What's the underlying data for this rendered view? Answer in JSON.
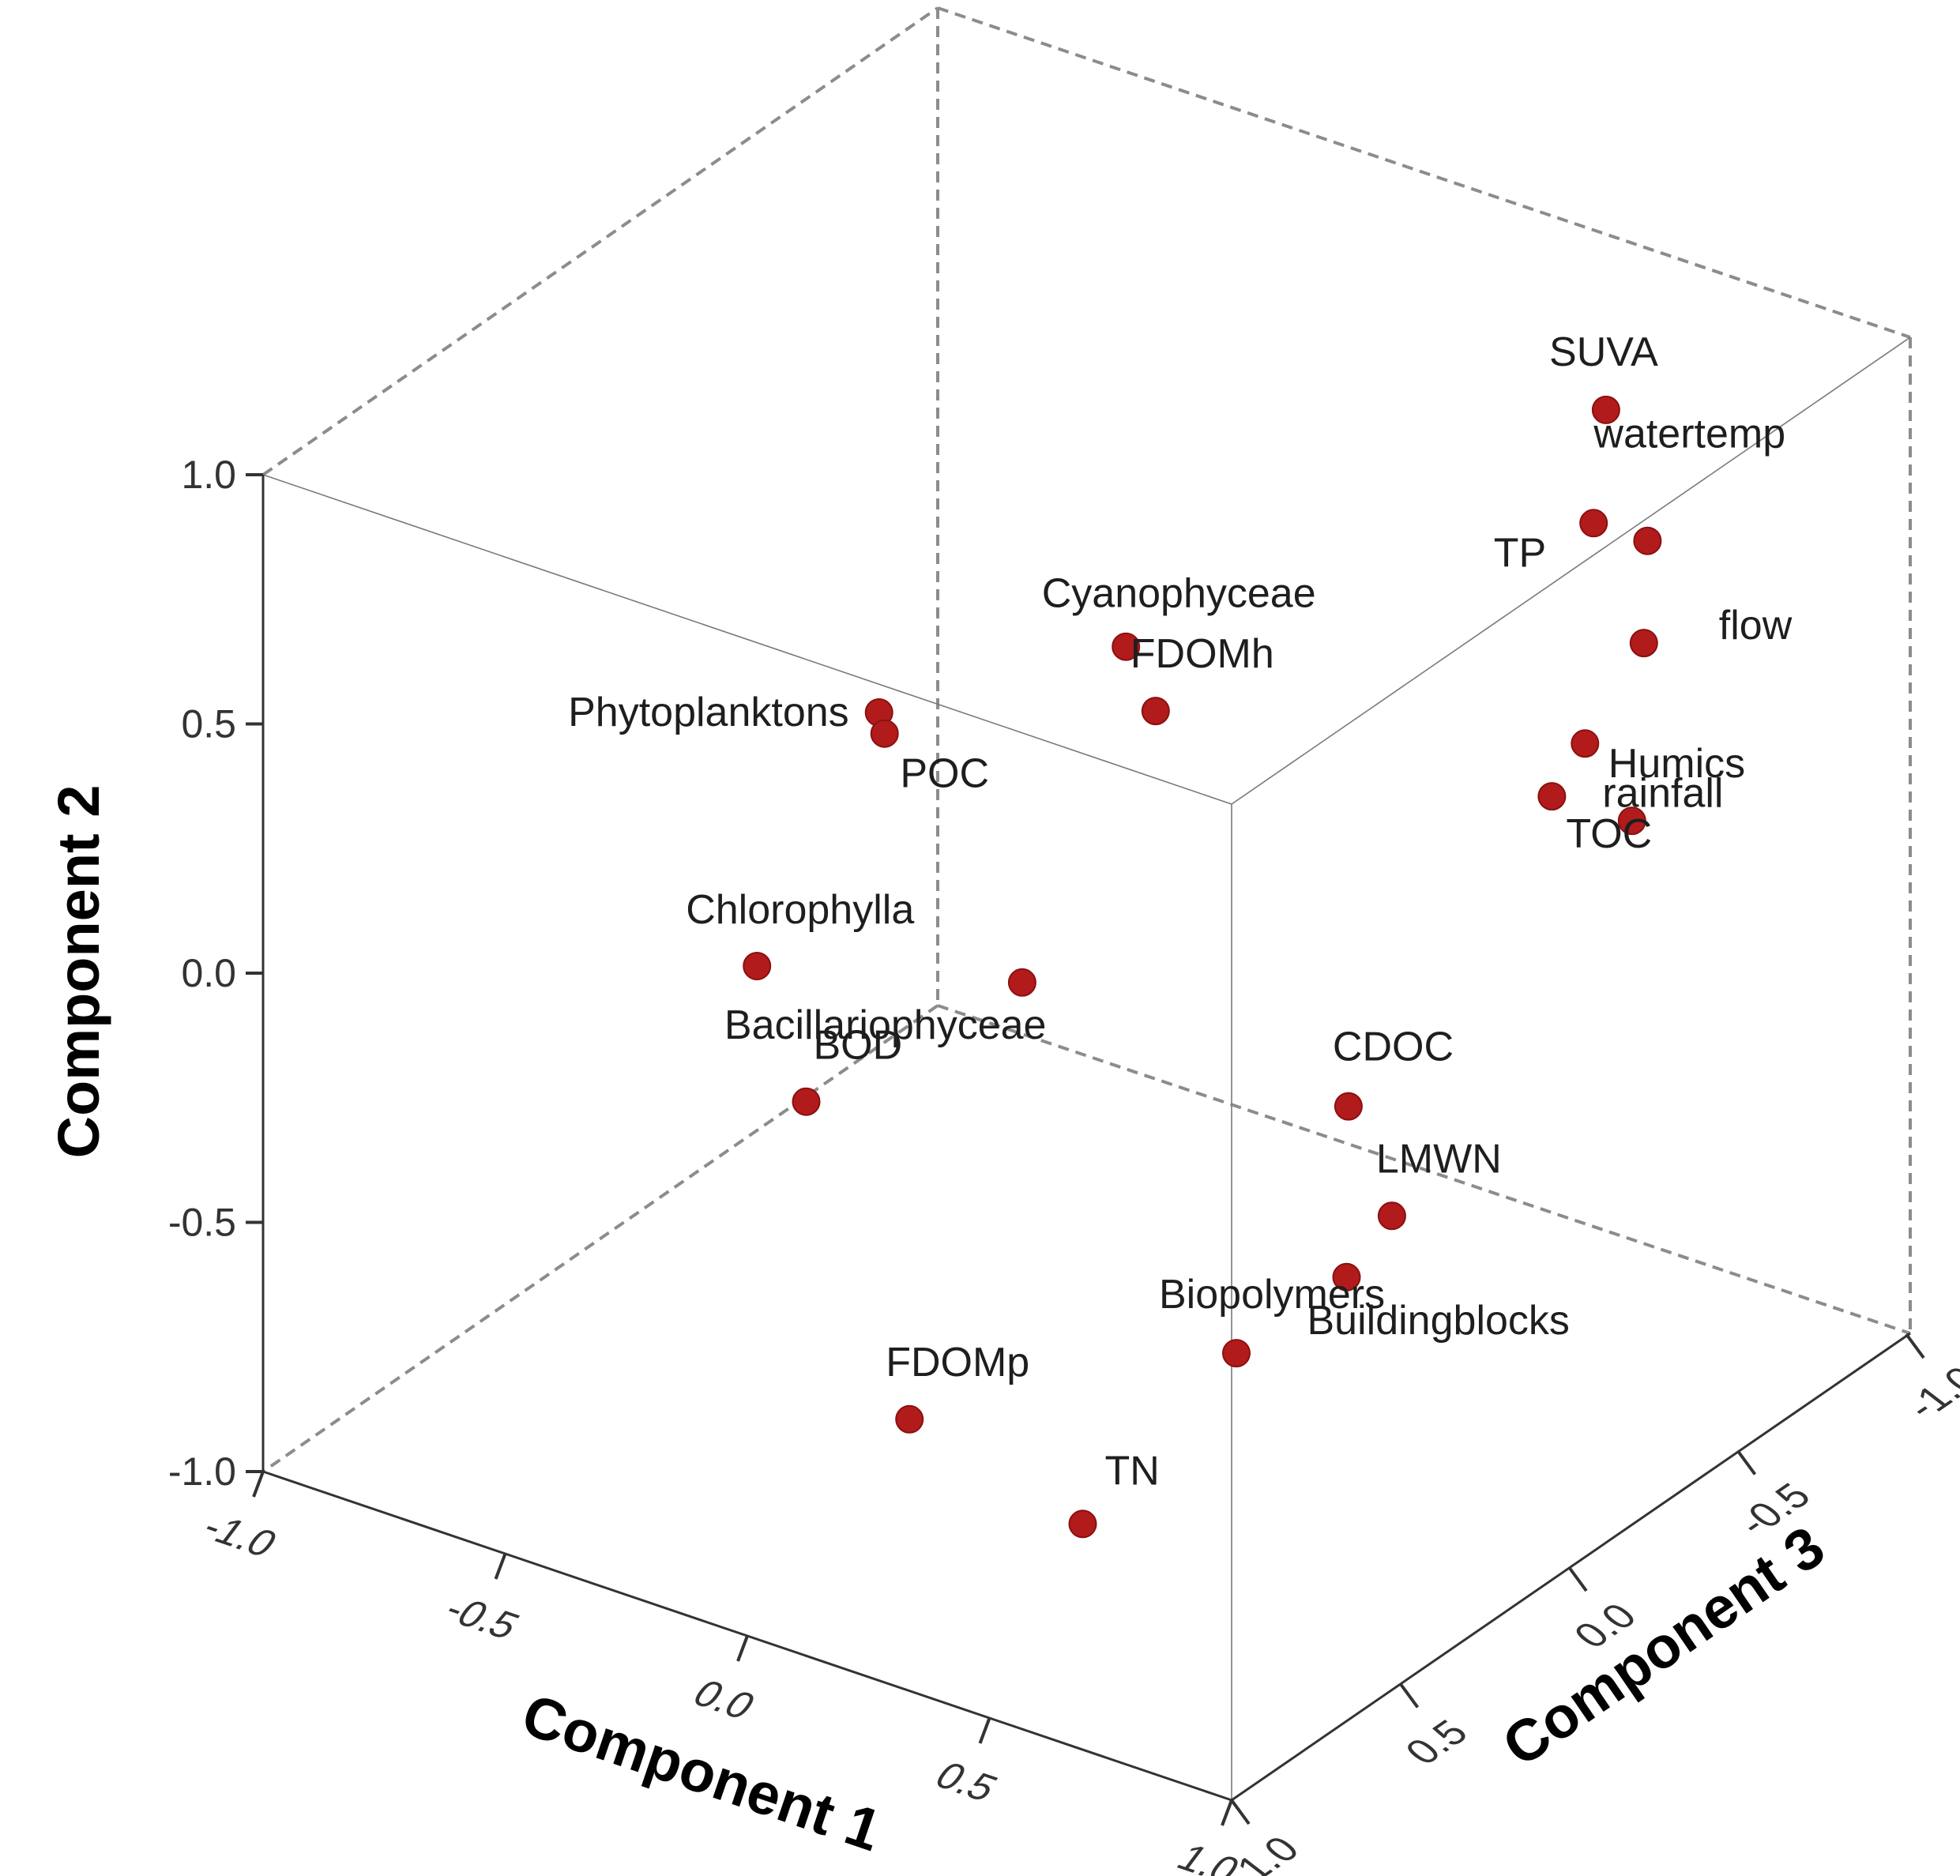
{
  "chart_data": {
    "type": "scatter3d",
    "title": "",
    "xlabel": "Component 1",
    "ylabel": "Component 2",
    "zlabel": "Component 3",
    "xlim": [
      -1.0,
      1.0
    ],
    "ylim": [
      -1.0,
      1.0
    ],
    "zlim": [
      -1.0,
      1.0
    ],
    "x_ticks": [
      "-1.0",
      "-0.5",
      "0.0",
      "0.5",
      "1.0"
    ],
    "y_ticks": [
      "-1.0",
      "-0.5",
      "0.0",
      "0.5",
      "1.0"
    ],
    "z_ticks": [
      "-1.0",
      "-0.5",
      "0.0",
      "0.5",
      "1.0"
    ],
    "grid": false,
    "marker_color": "#b21b1b",
    "points": [
      {
        "label": "SUVA",
        "x": 0.38,
        "y": 0.65,
        "z": -1.0
      },
      {
        "label": "watertemp",
        "x": 0.57,
        "y": 0.52,
        "z": -0.85
      },
      {
        "label": "TP",
        "x": 0.41,
        "y": 0.47,
        "z": -0.92
      },
      {
        "label": "flow",
        "x": 0.66,
        "y": 0.41,
        "z": -0.71
      },
      {
        "label": "rainfall",
        "x": 0.65,
        "y": 0.28,
        "z": -0.55
      },
      {
        "label": "TOC",
        "x": 0.7,
        "y": 0.27,
        "z": -0.38
      },
      {
        "label": "Cyanophyceae",
        "x": 0.12,
        "y": 0.58,
        "z": 0.05
      },
      {
        "label": "Phytoplanktons",
        "x": -0.16,
        "y": 0.51,
        "z": 0.38
      },
      {
        "label": "FDOMh",
        "x": 0.23,
        "y": 0.52,
        "z": 0.12
      },
      {
        "label": "POC",
        "x": -0.26,
        "y": 0.36,
        "z": 0.22
      },
      {
        "label": "Humics",
        "x": 0.97,
        "y": 0.38,
        "z": -0.23
      },
      {
        "label": "CDOC",
        "x": 0.9,
        "y": 0.13,
        "z": 0.51
      },
      {
        "label": "LMWN",
        "x": 0.92,
        "y": -0.13,
        "z": 0.41
      },
      {
        "label": "Buildingblocks",
        "x": 0.91,
        "y": -0.2,
        "z": 0.53
      },
      {
        "label": "Chlorophylla",
        "x": -0.6,
        "y": -0.27,
        "z": 0.11
      },
      {
        "label": "BOD",
        "x": -0.38,
        "y": -0.39,
        "z": 0.28
      },
      {
        "label": "Bacillariophyceae",
        "x": -0.15,
        "y": -0.22,
        "z": -0.03
      },
      {
        "label": "FDOMp",
        "x": 0.07,
        "y": -0.72,
        "z": 0.62
      },
      {
        "label": "Biopolymers",
        "x": 0.55,
        "y": -0.56,
        "z": 0.34
      },
      {
        "label": "TN",
        "x": 0.4,
        "y": -0.84,
        "z": 0.58
      }
    ]
  }
}
